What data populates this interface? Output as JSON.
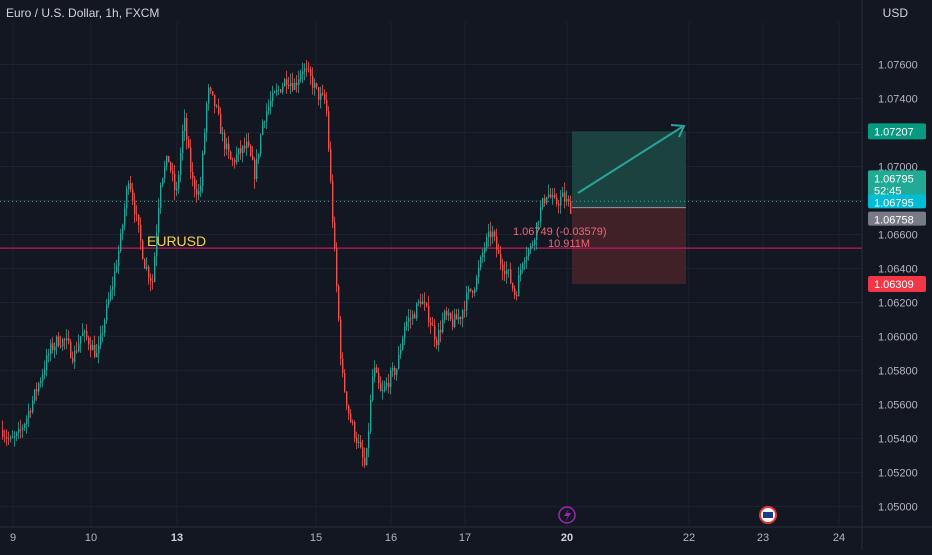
{
  "header": {
    "symbol": "Euro / U.S. Dollar, 1h, FXCM"
  },
  "price_axis": {
    "currency": "USD"
  },
  "colors": {
    "background": "#131722",
    "grid": "#1e2230",
    "text": "#b2b5be",
    "up": "#26a69a",
    "down": "#ef5350",
    "profit_zone": "#1f4a44",
    "loss_zone": "#4a2329",
    "tag_target": "#089981",
    "tag_current": "#22ab94",
    "tag_cyan": "#00bcd4",
    "tag_gray": "#787b86",
    "tag_stop": "#f23645",
    "label_yellow": "#f5d34a",
    "label_red": "#f06775",
    "marker_purple": "#9c27b0"
  },
  "chart_data": {
    "type": "candlestick",
    "title": "Euro / U.S. Dollar, 1h, FXCM",
    "ylabel": "USD",
    "y_ticks": [
      1.05,
      1.052,
      1.054,
      1.056,
      1.058,
      1.06,
      1.062,
      1.064,
      1.066,
      1.068,
      1.07,
      1.072,
      1.074,
      1.076
    ],
    "y_tick_labels": [
      "1.05000",
      "1.05200",
      "1.05400",
      "1.05600",
      "1.05800",
      "1.06000",
      "1.06200",
      "1.06400",
      "1.06600",
      "1.06800",
      "1.07000",
      "1.07200",
      "1.07400",
      "1.07600"
    ],
    "ylim": [
      1.0488,
      1.0785
    ],
    "x_ticks": [
      {
        "label": "9",
        "bold": false
      },
      {
        "label": "10",
        "bold": false
      },
      {
        "label": "13",
        "bold": true
      },
      {
        "label": "15",
        "bold": false
      },
      {
        "label": "16",
        "bold": false
      },
      {
        "label": "17",
        "bold": false
      },
      {
        "label": "20",
        "bold": true
      },
      {
        "label": "22",
        "bold": false
      },
      {
        "label": "23",
        "bold": false
      },
      {
        "label": "24",
        "bold": false
      }
    ],
    "close_path": [
      1.0545,
      1.0538,
      1.0542,
      1.0552,
      1.0565,
      1.0578,
      1.0592,
      1.0598,
      1.0597,
      1.0588,
      1.0602,
      1.0597,
      1.0588,
      1.0612,
      1.0632,
      1.0658,
      1.0695,
      1.0668,
      1.0643,
      1.0632,
      1.0692,
      1.0705,
      1.0682,
      1.0728,
      1.0692,
      1.0683,
      1.0745,
      1.0735,
      1.0715,
      1.0702,
      1.0708,
      1.0712,
      1.0695,
      1.0728,
      1.0738,
      1.0745,
      1.0752,
      1.0748,
      1.0758,
      1.0752,
      1.0742,
      1.0738,
      1.0655,
      1.0578,
      1.0552,
      1.0538,
      1.0522,
      1.0582,
      1.0565,
      1.0575,
      1.0582,
      1.0608,
      1.0612,
      1.0622,
      1.0612,
      1.0598,
      1.0612,
      1.0608,
      1.0612,
      1.0625,
      1.0632,
      1.0652,
      1.0662,
      1.0645,
      1.0638,
      1.0624,
      1.0648,
      1.0652,
      1.0672,
      1.0685,
      1.0678,
      1.0682,
      1.0676
    ],
    "horizontal_lines": [
      {
        "price": 1.0652,
        "color": "#c2185b",
        "label": "EURUSD"
      },
      {
        "price": 1.06795,
        "color": "#22ab94",
        "style": "dotted"
      }
    ],
    "position": {
      "type": "long",
      "entry": 1.06758,
      "target": 1.07207,
      "stop": 1.06309
    },
    "annotations": [
      {
        "text": "EURUSD",
        "color": "#f5d34a"
      },
      {
        "text": "1.06749 (-0.03579)",
        "color": "#f06775"
      },
      {
        "text": "10.911M",
        "color": "#f06775"
      }
    ],
    "price_tags": [
      {
        "text": "1.07207",
        "price": 1.07207,
        "color": "#089981"
      },
      {
        "text": "1.06795",
        "price": 1.06795,
        "color": "#22ab94",
        "sub": "52:45"
      },
      {
        "text": "1.06795",
        "price": 1.06795,
        "color": "#00bcd4"
      },
      {
        "text": "1.06758",
        "price": 1.06758,
        "color": "#787b86"
      },
      {
        "text": "1.06309",
        "price": 1.06309,
        "color": "#f23645"
      }
    ],
    "markers": [
      {
        "icon": "lightning-icon",
        "x_label": "20"
      },
      {
        "icon": "us-flag-icon",
        "x_label": "23"
      }
    ],
    "grid": true
  }
}
